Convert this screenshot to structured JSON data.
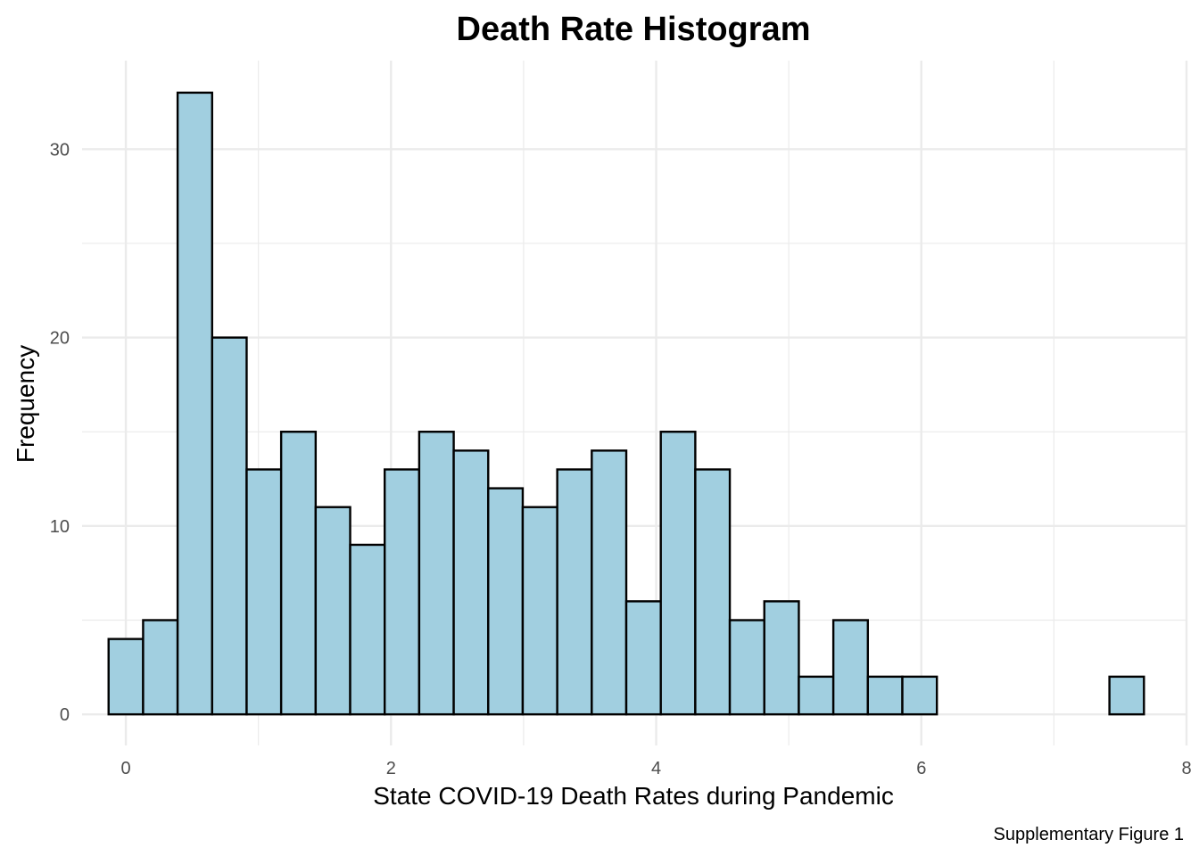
{
  "chart_data": {
    "type": "bar",
    "title": "Death Rate Histogram",
    "xlabel": "State COVID-19 Death Rates during Pandemic",
    "ylabel": "Frequency",
    "caption": "Supplementary Figure 1",
    "xlim": [
      -0.33,
      8.0
    ],
    "ylim": [
      -1.65,
      34.7
    ],
    "x_ticks": [
      0,
      2,
      4,
      6,
      8
    ],
    "x_minor_ticks": [
      1,
      3,
      5,
      7
    ],
    "y_ticks": [
      0,
      10,
      20,
      30
    ],
    "y_minor_ticks": [
      5,
      15,
      25
    ],
    "grid": true,
    "bin_width": 0.2603,
    "bin_start": -0.13,
    "values": [
      4,
      5,
      33,
      20,
      13,
      15,
      11,
      9,
      13,
      15,
      14,
      12,
      11,
      13,
      14,
      6,
      15,
      13,
      5,
      6,
      2,
      5,
      2,
      2,
      0,
      0,
      0,
      0,
      0,
      2
    ],
    "fill_color": "#a1cfe0",
    "edge_color": "#000000"
  }
}
